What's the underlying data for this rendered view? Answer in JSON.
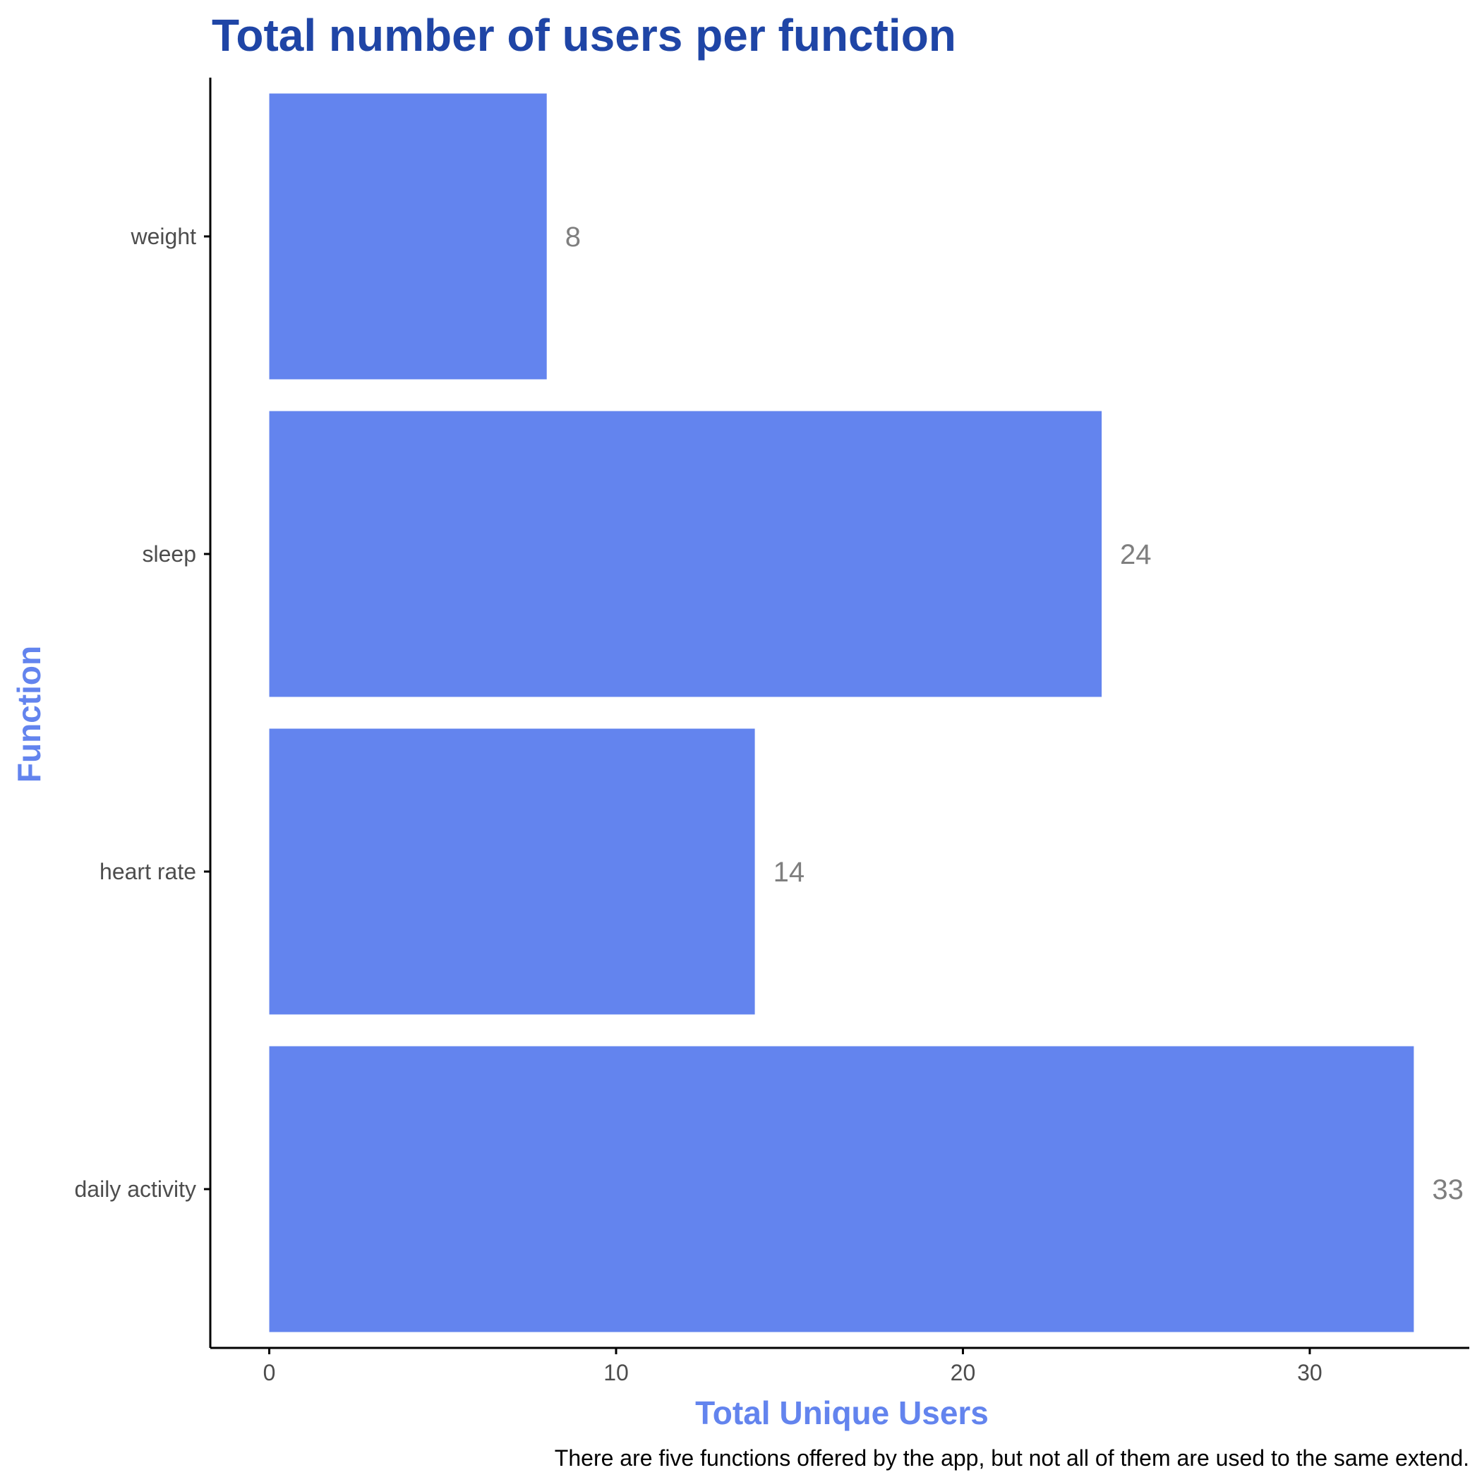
{
  "colors": {
    "bar": "#6384ee",
    "title": "#1f45a6",
    "axis_title": "#6384ee",
    "value_label": "#7f7f7f",
    "tick_label": "#4d4d4d",
    "axis_line": "#000000"
  },
  "chart_data": {
    "type": "bar",
    "orientation": "horizontal",
    "title": "Total number of users per function",
    "xlabel": "Total Unique Users",
    "ylabel": "Function",
    "caption": "There are five functions offered by the app, but not all of them are used to the same extend.",
    "categories": [
      "daily activity",
      "heart rate",
      "sleep",
      "weight"
    ],
    "values": [
      33,
      14,
      24,
      8
    ],
    "data_labels": [
      "33",
      "14",
      "24",
      "8"
    ],
    "xlim": [
      -1.7,
      34.6
    ],
    "xticks": [
      0,
      10,
      20,
      30
    ],
    "xtick_labels": [
      "0",
      "10",
      "20",
      "30"
    ],
    "grid": false,
    "legend": "none"
  }
}
